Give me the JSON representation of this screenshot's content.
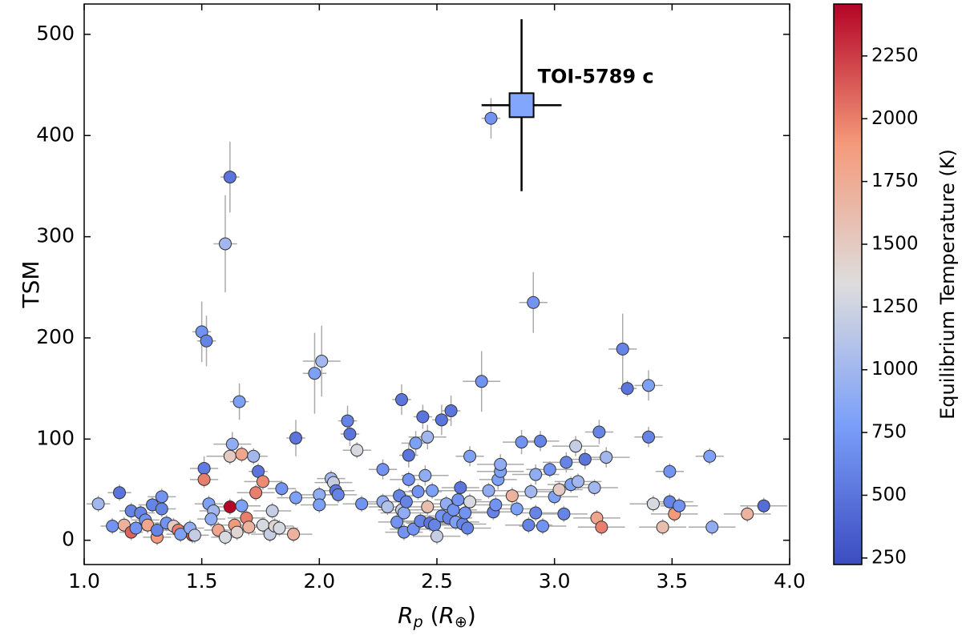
{
  "chart_data": {
    "type": "scatter",
    "ylabel": "TSM",
    "xlabel": {
      "symbol": "R",
      "subscript": "p",
      "unit_symbol": "R",
      "unit_subscript": "⊕"
    },
    "xlim": [
      1.0,
      4.0
    ],
    "ylim": [
      -24,
      530
    ],
    "xticks": [
      {
        "value": 1,
        "label": "1.0"
      },
      1.5,
      {
        "value": 2,
        "label": "2.0"
      },
      2.5,
      {
        "value": 3,
        "label": "3.0"
      },
      3.5,
      {
        "value": 4,
        "label": "4.0"
      }
    ],
    "yticks": [
      0,
      100,
      200,
      300,
      400,
      500
    ],
    "points": {
      "x": [
        1.06,
        1.15,
        1.12,
        1.17,
        1.2,
        1.2,
        1.22,
        1.24,
        1.26,
        1.27,
        1.29,
        1.31,
        1.31,
        1.33,
        1.33,
        1.35,
        1.38,
        1.4,
        1.41,
        1.46,
        1.45,
        1.47,
        1.5,
        1.52,
        1.51,
        1.51,
        1.53,
        1.55,
        1.54,
        1.57,
        1.6,
        1.62,
        1.6,
        1.62,
        1.63,
        1.62,
        1.64,
        1.65,
        1.66,
        1.67,
        1.67,
        1.69,
        1.7,
        1.72,
        1.73,
        1.74,
        1.76,
        1.76,
        1.79,
        1.8,
        1.81,
        1.83,
        1.84,
        1.89,
        1.9,
        1.9,
        1.98,
        2.01,
        2.0,
        2.0,
        2.05,
        2.06,
        2.07,
        2.08,
        2.12,
        2.13,
        2.16,
        2.18,
        2.27,
        2.27,
        2.29,
        2.33,
        2.35,
        2.34,
        2.35,
        2.36,
        2.36,
        2.37,
        2.38,
        2.38,
        2.4,
        2.41,
        2.42,
        2.43,
        2.44,
        2.45,
        2.46,
        2.46,
        2.47,
        2.48,
        2.49,
        2.5,
        2.52,
        2.52,
        2.54,
        2.55,
        2.56,
        2.57,
        2.58,
        2.59,
        2.6,
        2.61,
        2.62,
        2.63,
        2.64,
        2.64,
        2.69,
        2.72,
        2.73,
        2.74,
        2.75,
        2.76,
        2.77,
        2.77,
        2.82,
        2.84,
        2.86,
        2.89,
        2.9,
        2.91,
        2.92,
        2.92,
        2.94,
        2.95,
        2.98,
        3.0,
        3.02,
        3.04,
        3.05,
        3.07,
        3.09,
        3.1,
        3.13,
        3.17,
        3.18,
        3.19,
        3.2,
        3.22,
        3.29,
        3.31,
        3.4,
        3.4,
        3.42,
        3.46,
        3.49,
        3.49,
        3.51,
        3.53,
        3.66,
        3.67,
        3.82,
        3.89
      ],
      "y": [
        36,
        47,
        14,
        15,
        8,
        29,
        12,
        27,
        20,
        15,
        35,
        3,
        10,
        43,
        31,
        17,
        14,
        10,
        6,
        5,
        12,
        5,
        206,
        197,
        71,
        60,
        36,
        29,
        21,
        10,
        293,
        359,
        3,
        33,
        95,
        83,
        15,
        8,
        137,
        85,
        34,
        22,
        13,
        83,
        47,
        68,
        58,
        15,
        6,
        29,
        14,
        12,
        51,
        6,
        101,
        42,
        165,
        177,
        45,
        35,
        61,
        57,
        49,
        45,
        118,
        105,
        89,
        36,
        70,
        38,
        33,
        18,
        139,
        44,
        30,
        27,
        8,
        38,
        60,
        84,
        11,
        96,
        48,
        19,
        122,
        64,
        102,
        33,
        17,
        49,
        15,
        4,
        119,
        24,
        36,
        22,
        128,
        30,
        18,
        40,
        52,
        16,
        27,
        12,
        38,
        83,
        157,
        49,
        417,
        28,
        35,
        60,
        68,
        75,
        44,
        31,
        97,
        15,
        48,
        235,
        27,
        65,
        98,
        14,
        70,
        43,
        50,
        26,
        77,
        55,
        93,
        58,
        80,
        52,
        22,
        107,
        13,
        82,
        189,
        150,
        153,
        102,
        36,
        13,
        68,
        38,
        26,
        34,
        83,
        13,
        26,
        34
      ],
      "temperature": [
        1000,
        500,
        700,
        1700,
        2100,
        600,
        700,
        600,
        700,
        1800,
        600,
        1900,
        600,
        700,
        600,
        700,
        1500,
        2000,
        800,
        2200,
        900,
        1200,
        700,
        600,
        550,
        2000,
        800,
        1000,
        900,
        1800,
        1000,
        500,
        1300,
        2450,
        900,
        1500,
        1900,
        1400,
        800,
        1800,
        800,
        2000,
        1700,
        1000,
        2000,
        500,
        1950,
        1300,
        1200,
        1200,
        1400,
        1300,
        700,
        1700,
        500,
        800,
        800,
        1000,
        900,
        800,
        1000,
        1200,
        500,
        600,
        600,
        500,
        1300,
        700,
        700,
        900,
        1100,
        700,
        500,
        600,
        1200,
        900,
        700,
        600,
        700,
        500,
        700,
        800,
        700,
        600,
        500,
        900,
        1000,
        1600,
        500,
        800,
        600,
        1200,
        500,
        700,
        900,
        600,
        500,
        700,
        800,
        700,
        500,
        600,
        700,
        600,
        1300,
        800,
        700,
        900,
        700,
        600,
        700,
        800,
        800,
        900,
        1700,
        800,
        700,
        600,
        1000,
        700,
        600,
        900,
        600,
        700,
        700,
        800,
        1500,
        600,
        600,
        800,
        1200,
        1000,
        500,
        1000,
        1800,
        600,
        2000,
        1000,
        600,
        500,
        800,
        600,
        1300,
        1600,
        700,
        600,
        1900,
        700,
        800,
        900,
        1700,
        450
      ],
      "xerr": [
        0.05,
        0.05,
        0.05,
        0.05,
        0.05,
        0.05,
        0.06,
        0.06,
        0.06,
        0.06,
        0.06,
        0.06,
        0.06,
        0.06,
        0.06,
        0.06,
        0.06,
        0.06,
        0.06,
        0.06,
        0.06,
        0.06,
        0.04,
        0.04,
        0.06,
        0.06,
        0.06,
        0.06,
        0.06,
        0.06,
        0.05,
        0.04,
        0.06,
        0.06,
        0.08,
        0.1,
        0.06,
        0.08,
        0.04,
        0.08,
        0.08,
        0.08,
        0.08,
        0.06,
        0.08,
        0.04,
        0.08,
        0.08,
        0.08,
        0.08,
        0.08,
        0.08,
        0.06,
        0.08,
        0.04,
        0.08,
        0.05,
        0.08,
        0.08,
        0.08,
        0.06,
        0.08,
        0.08,
        0.08,
        0.04,
        0.04,
        0.06,
        0.08,
        0.06,
        0.08,
        0.08,
        0.08,
        0.04,
        0.08,
        0.1,
        0.1,
        0.08,
        0.1,
        0.08,
        0.04,
        0.1,
        0.06,
        0.1,
        0.1,
        0.04,
        0.1,
        0.08,
        0.1,
        0.1,
        0.1,
        0.1,
        0.1,
        0.04,
        0.1,
        0.1,
        0.1,
        0.04,
        0.1,
        0.1,
        0.1,
        0.08,
        0.1,
        0.1,
        0.1,
        0.1,
        0.06,
        0.08,
        0.1,
        0.04,
        0.1,
        0.1,
        0.08,
        0.1,
        0.1,
        0.1,
        0.1,
        0.08,
        0.1,
        0.1,
        0.06,
        0.1,
        0.1,
        0.08,
        0.1,
        0.1,
        0.1,
        0.1,
        0.1,
        0.1,
        0.1,
        0.1,
        0.1,
        0.1,
        0.1,
        0.1,
        0.06,
        0.1,
        0.1,
        0.06,
        0.04,
        0.06,
        0.06,
        0.1,
        0.1,
        0.06,
        0.1,
        0.1,
        0.08,
        0.06,
        0.1,
        0.1,
        0.1
      ],
      "yerr": [
        8,
        8,
        8,
        8,
        8,
        8,
        8,
        8,
        8,
        8,
        8,
        8,
        8,
        8,
        8,
        8,
        8,
        8,
        8,
        8,
        8,
        8,
        30,
        25,
        12,
        8,
        8,
        8,
        8,
        8,
        48,
        35,
        8,
        8,
        12,
        8,
        8,
        8,
        18,
        8,
        8,
        8,
        8,
        8,
        8,
        8,
        8,
        8,
        8,
        8,
        8,
        8,
        8,
        8,
        18,
        8,
        40,
        35,
        8,
        8,
        8,
        8,
        8,
        8,
        15,
        12,
        8,
        8,
        10,
        8,
        8,
        8,
        15,
        8,
        8,
        8,
        8,
        8,
        8,
        12,
        8,
        12,
        8,
        8,
        12,
        10,
        12,
        8,
        8,
        8,
        8,
        8,
        15,
        8,
        8,
        8,
        15,
        8,
        8,
        8,
        8,
        8,
        8,
        8,
        8,
        10,
        30,
        8,
        20,
        8,
        8,
        10,
        10,
        10,
        8,
        8,
        12,
        8,
        8,
        30,
        8,
        10,
        10,
        8,
        8,
        8,
        8,
        8,
        10,
        8,
        10,
        8,
        10,
        8,
        8,
        12,
        8,
        10,
        35,
        8,
        15,
        10,
        8,
        8,
        8,
        8,
        8,
        8,
        8,
        8,
        8,
        8
      ]
    },
    "highlight": {
      "name": "TOI-5789 c",
      "x": 2.86,
      "y": 430,
      "xerr": 0.17,
      "yerr": 85,
      "color": "#82a6fb"
    },
    "colorbar": {
      "label": "Equilibrium Temperature (K)",
      "lim": [
        224,
        2457
      ],
      "ticks": [
        250,
        500,
        750,
        1000,
        1250,
        1500,
        1750,
        2000,
        2250
      ],
      "colormap": [
        "#3b4cc0",
        "#7b9ff9",
        "#dddddd",
        "#f49a7b",
        "#b40426"
      ]
    }
  }
}
